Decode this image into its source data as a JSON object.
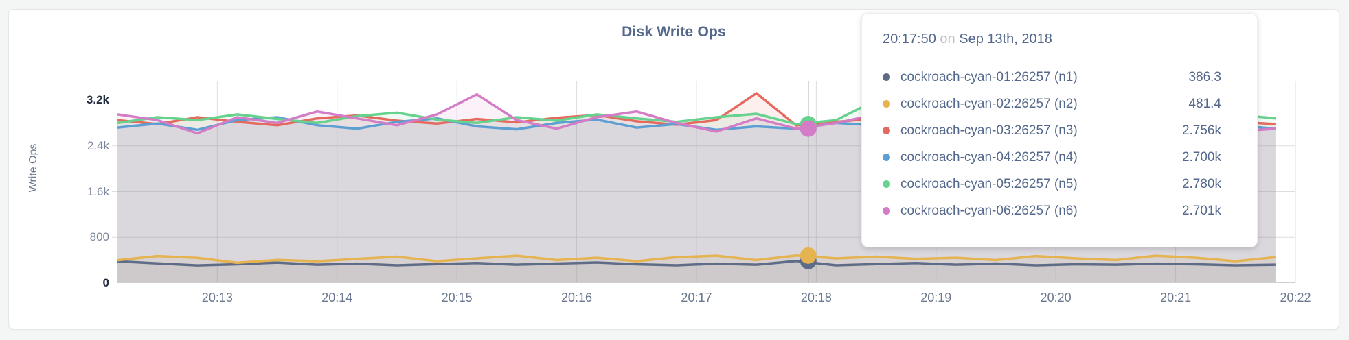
{
  "card": {
    "title": "Disk Write Ops"
  },
  "tooltip": {
    "time": "20:17:50",
    "conjunction": "on",
    "date": "Sep 13th, 2018"
  },
  "chart_data": {
    "type": "area",
    "title": "Disk Write Ops",
    "xlabel": "",
    "ylabel": "Write Ops",
    "legend_position": "none",
    "grid": true,
    "ylim": [
      0,
      3536
    ],
    "y_ticks": [
      {
        "label": "0",
        "value": 0,
        "dark": true
      },
      {
        "label": "800",
        "value": 800,
        "dark": false
      },
      {
        "label": "1.6k",
        "value": 1600,
        "dark": false
      },
      {
        "label": "2.4k",
        "value": 2400,
        "dark": false
      },
      {
        "label": "3.2k",
        "value": 3200,
        "dark": true
      }
    ],
    "x_ticks": [
      {
        "label": "20:13",
        "t": 50
      },
      {
        "label": "20:14",
        "t": 110
      },
      {
        "label": "20:15",
        "t": 170
      },
      {
        "label": "20:16",
        "t": 230
      },
      {
        "label": "20:17",
        "t": 290
      },
      {
        "label": "20:18",
        "t": 350
      },
      {
        "label": "20:19",
        "t": 410
      },
      {
        "label": "20:20",
        "t": 470
      },
      {
        "label": "20:21",
        "t": 530
      },
      {
        "label": "20:22",
        "t": 590
      }
    ],
    "x_domain_seconds": [
      0,
      590
    ],
    "x_step_seconds": 20,
    "hover": {
      "time_seconds": 346,
      "time_label": "20:17:50",
      "date_label": "Sep 13th, 2018"
    },
    "series": [
      {
        "id": "n1",
        "name": "cockroach-cyan-01:26257 (n1)",
        "color": "#5f6c87",
        "hover_value": 386.3,
        "hover_label": "386.3",
        "values": [
          380,
          345,
          310,
          330,
          358,
          322,
          340,
          312,
          332,
          350,
          322,
          342,
          360,
          330,
          312,
          340,
          322,
          386.3,
          312,
          332,
          350,
          322,
          342,
          312,
          330,
          322,
          340,
          330,
          312,
          322
        ]
      },
      {
        "id": "n2",
        "name": "cockroach-cyan-02:26257 (n2)",
        "color": "#e5b34f",
        "hover_value": 481.4,
        "hover_label": "481.4",
        "values": [
          400,
          472,
          440,
          355,
          405,
          382,
          422,
          462,
          382,
          432,
          478,
          402,
          442,
          382,
          452,
          478,
          402,
          481.4,
          432,
          462,
          422,
          442,
          402,
          472,
          432,
          402,
          478,
          442,
          382,
          452
        ]
      },
      {
        "id": "n3",
        "name": "cockroach-cyan-03:26257 (n3)",
        "color": "#e46a60",
        "hover_value": 2756,
        "hover_label": "2.756k",
        "values": [
          2850,
          2780,
          2900,
          2820,
          2760,
          2880,
          2930,
          2840,
          2790,
          2870,
          2810,
          2890,
          2940,
          2830,
          2770,
          2850,
          3320,
          2756,
          2820,
          2880,
          2790,
          2930,
          2860,
          2780,
          2840,
          2890,
          2800,
          2870,
          2820,
          2780
        ]
      },
      {
        "id": "n4",
        "name": "cockroach-cyan-04:26257 (n4)",
        "color": "#5d9fd3",
        "hover_value": 2700,
        "hover_label": "2.700k",
        "values": [
          2720,
          2790,
          2680,
          2850,
          2900,
          2760,
          2700,
          2820,
          2880,
          2740,
          2690,
          2800,
          2860,
          2720,
          2780,
          2680,
          2740,
          2700,
          2800,
          2760,
          2840,
          2700,
          2760,
          2880,
          2800,
          2720,
          2790,
          2850,
          2760,
          2700
        ]
      },
      {
        "id": "n5",
        "name": "cockroach-cyan-05:26257 (n5)",
        "color": "#66d28e",
        "hover_value": 2780,
        "hover_label": "2.780k",
        "values": [
          2800,
          2900,
          2850,
          2950,
          2870,
          2800,
          2920,
          2980,
          2860,
          2800,
          2900,
          2840,
          2950,
          2880,
          2820,
          2900,
          2960,
          2780,
          2850,
          3200,
          2870,
          2800,
          2890,
          2950,
          2860,
          2920,
          2840,
          2900,
          2950,
          2880
        ]
      },
      {
        "id": "n6",
        "name": "cockroach-cyan-06:26257 (n6)",
        "color": "#d47cc6",
        "hover_value": 2701,
        "hover_label": "2.701k",
        "values": [
          2950,
          2850,
          2620,
          2900,
          2800,
          3000,
          2880,
          2760,
          2950,
          3300,
          2850,
          2700,
          2900,
          3000,
          2800,
          2650,
          2880,
          2701,
          2800,
          2950,
          2700,
          2600,
          2850,
          2950,
          2750,
          2900,
          3280,
          2800,
          2650,
          2700
        ]
      }
    ]
  }
}
